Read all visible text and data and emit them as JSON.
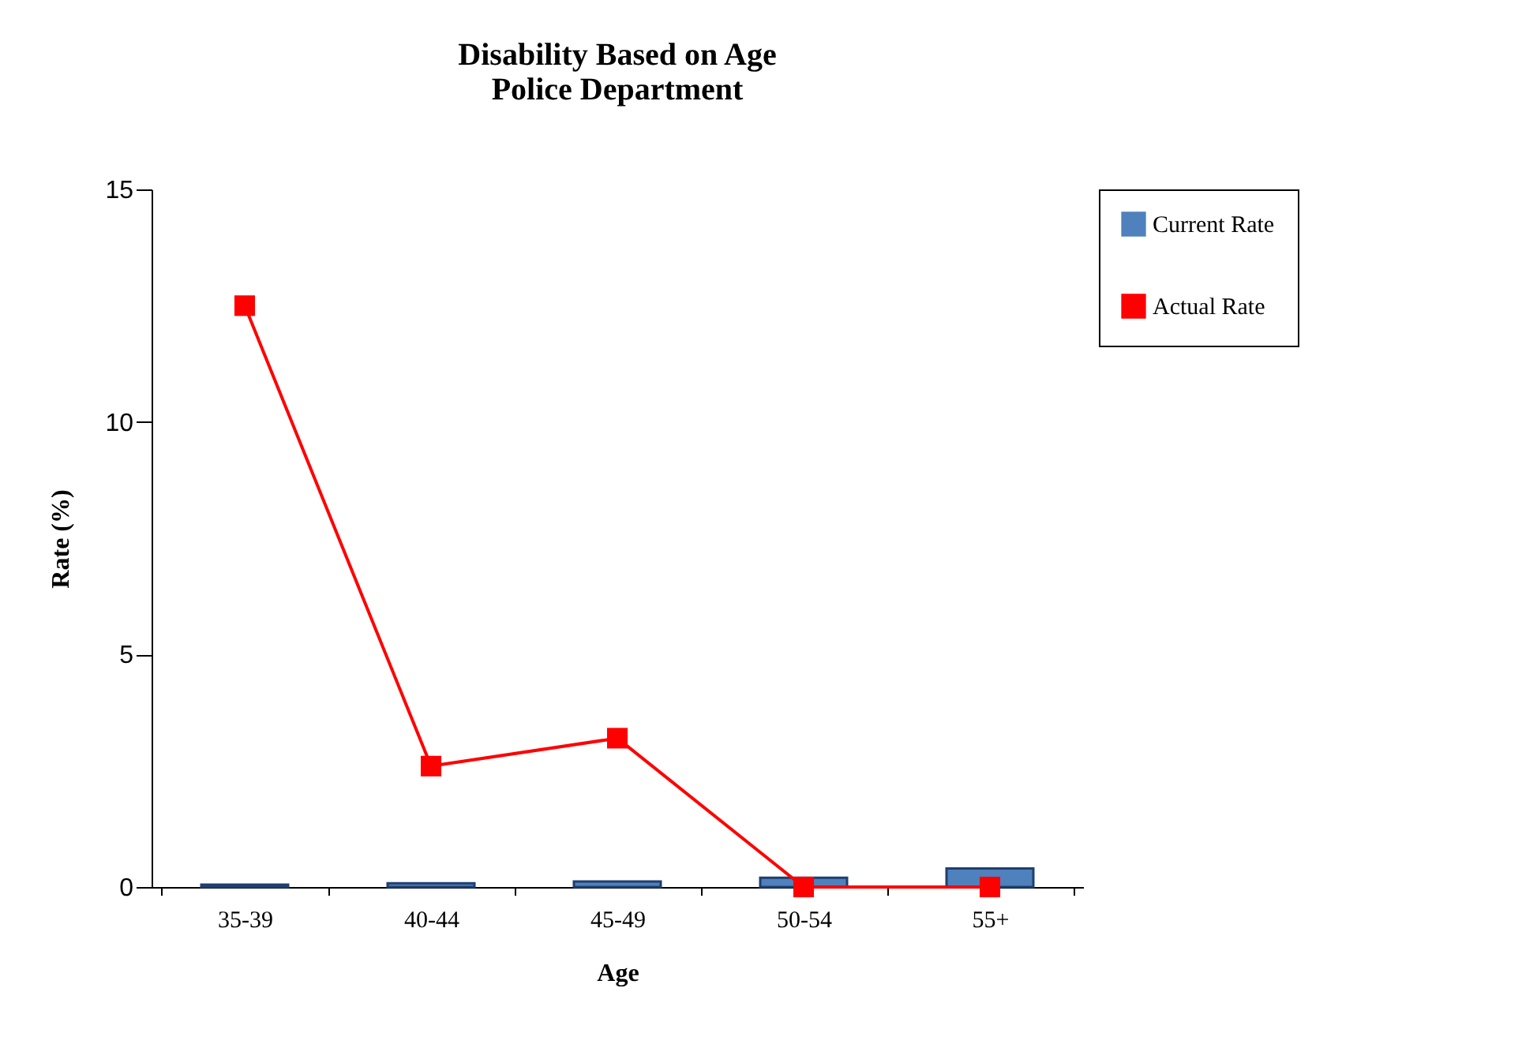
{
  "chart_data": {
    "type": "bar",
    "title": "Disability Based on Age\nPolice Department",
    "xlabel": "Age",
    "ylabel": "Rate (%)",
    "categories": [
      "35-39",
      "40-44",
      "45-49",
      "50-54",
      "55+"
    ],
    "series": [
      {
        "name": "Current Rate",
        "color": "#4f81bd",
        "values": [
          0.05,
          0.08,
          0.12,
          0.2,
          0.4
        ]
      },
      {
        "name": "Actual Rate",
        "type": "line",
        "color": "#ff0000",
        "marker": "square",
        "values": [
          12.5,
          2.6,
          3.2,
          0,
          0
        ]
      }
    ],
    "ylim": [
      0,
      15
    ],
    "yticks": [
      0,
      5,
      10,
      15
    ],
    "grid": false,
    "legend": "right"
  }
}
